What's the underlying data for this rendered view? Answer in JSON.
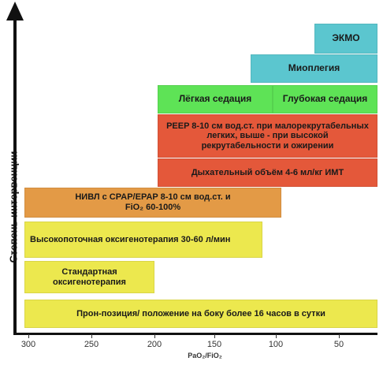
{
  "y_axis_title": "Степень интервенции",
  "x_axis_title": "PaO₂/FiO₂",
  "x_ticks": [
    "300",
    "250",
    "200",
    "150",
    "100",
    "50"
  ],
  "boxes": {
    "ecmo": "ЭКМО",
    "myoplegia": "Миоплегия",
    "light_sedation": "Лёгкая седация",
    "deep_sedation": "Глубокая седация",
    "peep": "PEEP 8-10 см вод.ст. при малорекрутабельных легких, выше - при высокой рекрутабельности и ожирении",
    "tidal_volume": "Дыхательный объём 4-6 мл/кг ИМТ",
    "niv": "НИВЛ с CPAP/EPAP 8-10 см вод.ст. и FiO₂ 60-100%",
    "high_flow": "Высокопоточная оксигенотерапия 30-60 л/мин",
    "standard": "Стандартная оксигенотерапия",
    "prone": "Прон-позиция/ положение на боку более 16 часов в сутки"
  }
}
